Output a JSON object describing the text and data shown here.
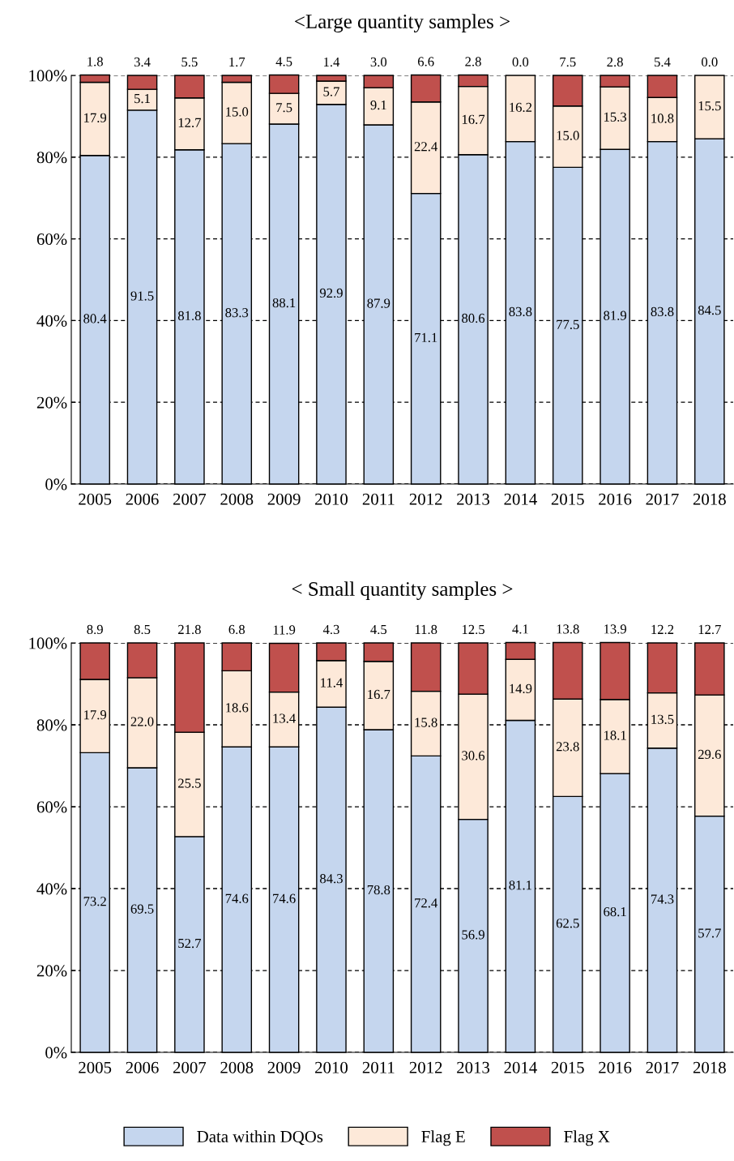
{
  "chart_data": [
    {
      "type": "bar",
      "title": "<Large quantity samples >",
      "stacked": true,
      "grid": "y",
      "legend": false,
      "categories": [
        "2005",
        "2006",
        "2007",
        "2008",
        "2009",
        "2010",
        "2011",
        "2012",
        "2013",
        "2014",
        "2015",
        "2016",
        "2017",
        "2018"
      ],
      "ylim": [
        0,
        100
      ],
      "yticks": [
        {
          "value": 0,
          "label": "0%"
        },
        {
          "value": 20,
          "label": "20%"
        },
        {
          "value": 40,
          "label": "40%"
        },
        {
          "value": 60,
          "label": "60%"
        },
        {
          "value": 80,
          "label": "80%"
        },
        {
          "value": 100,
          "label": "100%"
        }
      ],
      "series": [
        {
          "color": "#c5d6ee",
          "values": [
            80.4,
            91.5,
            81.8,
            83.3,
            88.1,
            92.9,
            87.9,
            71.1,
            80.6,
            83.8,
            77.5,
            81.9,
            83.8,
            84.5
          ],
          "value_labels": [
            "80.4",
            "91.5",
            "81.8",
            "83.3",
            "88.1",
            "92.9",
            "87.9",
            "71.1",
            "80.6",
            "83.8",
            "77.5",
            "81.9",
            "83.8",
            "84.5"
          ]
        },
        {
          "color": "#fde9d9",
          "values": [
            17.9,
            5.1,
            12.7,
            15.0,
            7.5,
            5.7,
            9.1,
            22.4,
            16.7,
            16.2,
            15.0,
            15.3,
            10.8,
            15.5
          ],
          "value_labels": [
            "17.9",
            "5.1",
            "12.7",
            "15.0",
            "7.5",
            "5.7",
            "9.1",
            "22.4",
            "16.7",
            "16.2",
            "15.0",
            "15.3",
            "10.8",
            "15.5"
          ]
        },
        {
          "color": "#c0504d",
          "values": [
            1.8,
            3.4,
            5.5,
            1.7,
            4.5,
            1.4,
            3.0,
            6.6,
            2.8,
            0.0,
            7.5,
            2.8,
            5.4,
            0.0
          ],
          "value_labels": [
            "1.8",
            "3.4",
            "5.5",
            "1.7",
            "4.5",
            "1.4",
            "3.0",
            "6.6",
            "2.8",
            "0.0",
            "7.5",
            "2.8",
            "5.4",
            "0.0"
          ]
        }
      ]
    },
    {
      "type": "bar",
      "title": "< Small quantity samples >",
      "stacked": true,
      "grid": "y",
      "legend": "bottom",
      "categories": [
        "2005",
        "2006",
        "2007",
        "2008",
        "2009",
        "2010",
        "2011",
        "2012",
        "2013",
        "2014",
        "2015",
        "2016",
        "2017",
        "2018"
      ],
      "ylim": [
        0,
        100
      ],
      "yticks": [
        {
          "value": 0,
          "label": "0%"
        },
        {
          "value": 20,
          "label": "20%"
        },
        {
          "value": 40,
          "label": "40%"
        },
        {
          "value": 60,
          "label": "60%"
        },
        {
          "value": 80,
          "label": "80%"
        },
        {
          "value": 100,
          "label": "100%"
        }
      ],
      "series": [
        {
          "name": "Data within DQOs",
          "color": "#c5d6ee",
          "values": [
            73.2,
            69.5,
            52.7,
            74.6,
            74.6,
            84.3,
            78.8,
            72.4,
            56.9,
            81.1,
            62.5,
            68.1,
            74.3,
            57.7
          ],
          "value_labels": [
            "73.2",
            "69.5",
            "52.7",
            "74.6",
            "74.6",
            "84.3",
            "78.8",
            "72.4",
            "56.9",
            "81.1",
            "62.5",
            "68.1",
            "74.3",
            "57.7"
          ]
        },
        {
          "name": "Flag E",
          "color": "#fde9d9",
          "values": [
            17.9,
            22.0,
            25.5,
            18.6,
            13.4,
            11.4,
            16.7,
            15.8,
            30.6,
            14.9,
            23.8,
            18.1,
            13.5,
            29.6
          ],
          "value_labels": [
            "17.9",
            "22.0",
            "25.5",
            "18.6",
            "13.4",
            "11.4",
            "16.7",
            "15.8",
            "30.6",
            "14.9",
            "23.8",
            "18.1",
            "13.5",
            "29.6"
          ]
        },
        {
          "name": "Flag X",
          "color": "#c0504d",
          "values": [
            8.9,
            8.5,
            21.8,
            6.8,
            11.9,
            4.3,
            4.5,
            11.8,
            12.5,
            4.1,
            13.8,
            13.9,
            12.2,
            12.7
          ],
          "value_labels": [
            "8.9",
            "8.5",
            "21.8",
            "6.8",
            "11.9",
            "4.3",
            "4.5",
            "11.8",
            "12.5",
            "4.1",
            "13.8",
            "13.9",
            "12.2",
            "12.7"
          ]
        }
      ]
    }
  ]
}
